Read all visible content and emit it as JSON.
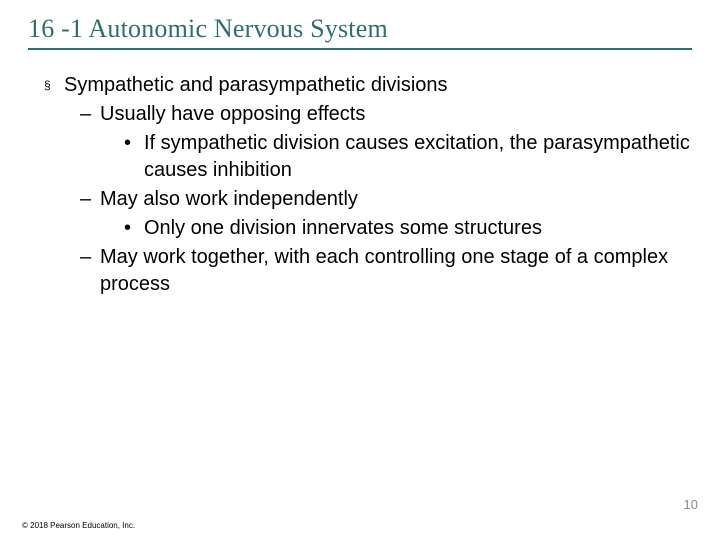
{
  "title": "16 -1 Autonomic Nervous System",
  "title_color": "#2f6e6e",
  "underline_color": "#2f6e6e",
  "body_fontsize": 20,
  "title_fontsize": 26,
  "bullets": {
    "l1_1": "Sympathetic and parasympathetic divisions",
    "l2_1": "Usually have opposing effects",
    "l3_1": "If sympathetic division causes excitation, the parasympathetic causes inhibition",
    "l2_2": "May also work independently",
    "l3_2": "Only one division innervates some structures",
    "l2_3": "May work together, with each controlling one stage of a complex process"
  },
  "markers": {
    "square": "§",
    "dash": "–",
    "dot": "•"
  },
  "page_number": "10",
  "copyright": "© 2018 Pearson Education, Inc."
}
